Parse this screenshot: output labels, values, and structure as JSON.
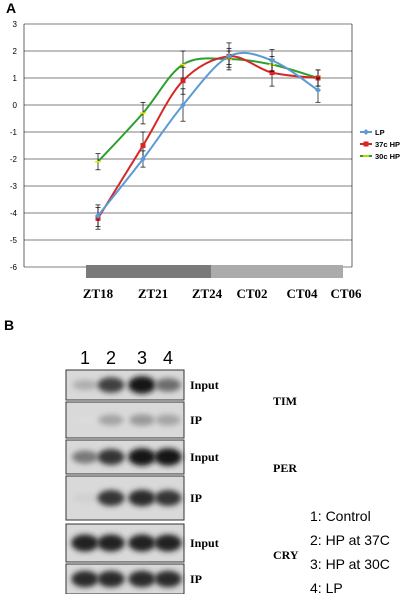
{
  "panel_a_label": "A",
  "panel_b_label": "B",
  "chart_data": {
    "type": "line",
    "title": "",
    "xlabel": "",
    "ylabel": "",
    "ylim": [
      -6,
      3
    ],
    "yticks": [
      "3",
      "2",
      "1",
      "0",
      "-1",
      "-2",
      "-3",
      "-4",
      "-5",
      "-6"
    ],
    "categories": [
      "ZT18",
      "ZT21",
      "ZT24",
      "CT02",
      "CT04",
      "CT06"
    ],
    "grid": true,
    "legend_position": "right",
    "series": [
      {
        "name": "LP",
        "color": "#5b9bd5",
        "values": [
          -4.1,
          -2.0,
          0.0,
          1.8,
          1.65,
          0.55
        ],
        "errors": [
          0.4,
          0.3,
          0.6,
          0.5,
          0.4,
          0.45
        ]
      },
      {
        "name": "37c HP",
        "color": "#d62728",
        "values": [
          -4.2,
          -1.5,
          0.9,
          1.8,
          1.2,
          1.0
        ],
        "errors": [
          0.4,
          0.5,
          0.5,
          0.3,
          0.5,
          0.3
        ]
      },
      {
        "name": "30c HP",
        "color": "#2ca02c",
        "values": [
          -2.1,
          -0.3,
          1.5,
          1.7,
          1.5,
          1.0
        ],
        "errors": [
          0.3,
          0.4,
          0.5,
          0.3,
          0.3,
          0.3
        ]
      }
    ]
  },
  "blot": {
    "lanes": [
      "1",
      "2",
      "3",
      "4"
    ],
    "rows": [
      {
        "label": "Input",
        "protein": "TIM",
        "bands": [
          0.25,
          0.75,
          0.95,
          0.55
        ]
      },
      {
        "label": "IP",
        "protein": "",
        "bands": [
          0.05,
          0.3,
          0.35,
          0.3
        ]
      },
      {
        "label": "Input",
        "protein": "PER",
        "bands": [
          0.5,
          0.8,
          0.95,
          0.95
        ]
      },
      {
        "label": "IP",
        "protein": "",
        "bands": [
          0.1,
          0.8,
          0.85,
          0.8
        ]
      },
      {
        "label": "Input",
        "protein": "CRY",
        "bands": [
          0.9,
          0.9,
          0.9,
          0.9
        ]
      },
      {
        "label": "IP",
        "protein": "",
        "bands": [
          0.85,
          0.85,
          0.85,
          0.85
        ]
      }
    ],
    "key": [
      "1: Control",
      "2: HP at 37C",
      "3: HP at 30C",
      "4: LP"
    ]
  }
}
